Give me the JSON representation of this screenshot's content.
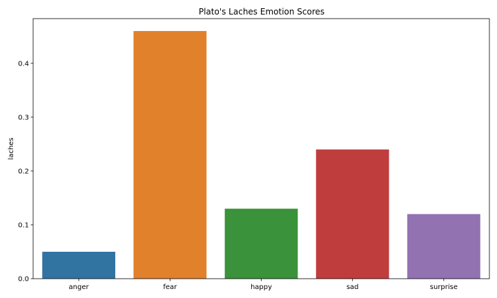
{
  "chart_data": {
    "type": "bar",
    "title": "Plato's Laches Emotion Scores",
    "xlabel": "",
    "ylabel": "laches",
    "categories": [
      "anger",
      "fear",
      "happy",
      "sad",
      "surprise"
    ],
    "values": [
      0.05,
      0.46,
      0.13,
      0.24,
      0.12
    ],
    "colors": [
      "#3274a1",
      "#e1812c",
      "#3a923a",
      "#c03d3e",
      "#9372b2"
    ],
    "ylim": [
      0,
      0.483
    ],
    "yticks": [
      0.0,
      0.1,
      0.2,
      0.3,
      0.4
    ],
    "ytick_labels": [
      "0.0",
      "0.1",
      "0.2",
      "0.3",
      "0.4"
    ],
    "grid": false,
    "legend": "none"
  }
}
